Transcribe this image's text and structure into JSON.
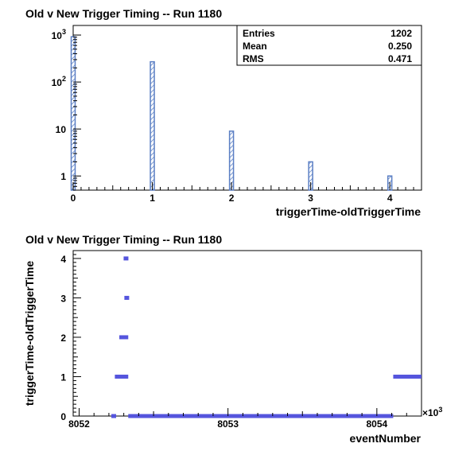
{
  "chart_data": [
    {
      "type": "bar",
      "title": "Old v New Trigger Timing -- Run 1180",
      "xlabel": "triggerTime-oldTriggerTime",
      "ylabel": "",
      "x_range": [
        0,
        4.4
      ],
      "y_scale": "log",
      "y_range": [
        0.5,
        1600
      ],
      "x_ticks": [
        {
          "v": 0,
          "label": "0"
        },
        {
          "v": 1,
          "label": "1"
        },
        {
          "v": 2,
          "label": "2"
        },
        {
          "v": 3,
          "label": "3"
        },
        {
          "v": 4,
          "label": "4"
        }
      ],
      "y_ticks": [
        {
          "v": 1,
          "base": "1",
          "exp": ""
        },
        {
          "v": 10,
          "base": "10",
          "exp": ""
        },
        {
          "v": 100,
          "base": "10",
          "exp": "2"
        },
        {
          "v": 1000,
          "base": "10",
          "exp": "3"
        }
      ],
      "bins": [
        {
          "x": 0,
          "value": 920
        },
        {
          "x": 1,
          "value": 270
        },
        {
          "x": 2,
          "value": 9
        },
        {
          "x": 3,
          "value": 2
        },
        {
          "x": 4,
          "value": 1
        }
      ],
      "bin_width": 0.05,
      "stats": [
        {
          "label": "Entries",
          "value": "1202"
        },
        {
          "label": "Mean",
          "value": "0.250"
        },
        {
          "label": "RMS",
          "value": "0.471"
        }
      ],
      "color": "#5b7fc4"
    },
    {
      "type": "scatter",
      "title": "Old v New Trigger Timing -- Run 1180",
      "xlabel": "eventNumber",
      "ylabel": "triggerTime-oldTriggerTime",
      "x_multiplier": "×10",
      "x_multiplier_exp": "3",
      "x_range": [
        8051.96,
        8054.3
      ],
      "y_range": [
        0,
        4.2
      ],
      "x_ticks": [
        {
          "v": 8052,
          "label": "8052"
        },
        {
          "v": 8053,
          "label": "8053"
        },
        {
          "v": 8054,
          "label": "8054"
        }
      ],
      "y_ticks": [
        {
          "v": 0,
          "label": "0"
        },
        {
          "v": 1,
          "label": "1"
        },
        {
          "v": 2,
          "label": "2"
        },
        {
          "v": 3,
          "label": "3"
        },
        {
          "v": 4,
          "label": "4"
        }
      ],
      "segments": [
        {
          "y": 0,
          "x_start": 8052.23,
          "x_end": 8052.235
        },
        {
          "y": 1,
          "x_start": 8052.24,
          "x_end": 8052.33
        },
        {
          "y": 2,
          "x_start": 8052.27,
          "x_end": 8052.33
        },
        {
          "y": 3,
          "x_start": 8052.31,
          "x_end": 8052.33
        },
        {
          "y": 4,
          "x_start": 8052.31,
          "x_end": 8052.32
        },
        {
          "y": 0,
          "x_start": 8052.33,
          "x_end": 8054.11
        },
        {
          "y": 1,
          "x_start": 8054.11,
          "x_end": 8054.62
        }
      ],
      "color": "#5555dd"
    }
  ]
}
